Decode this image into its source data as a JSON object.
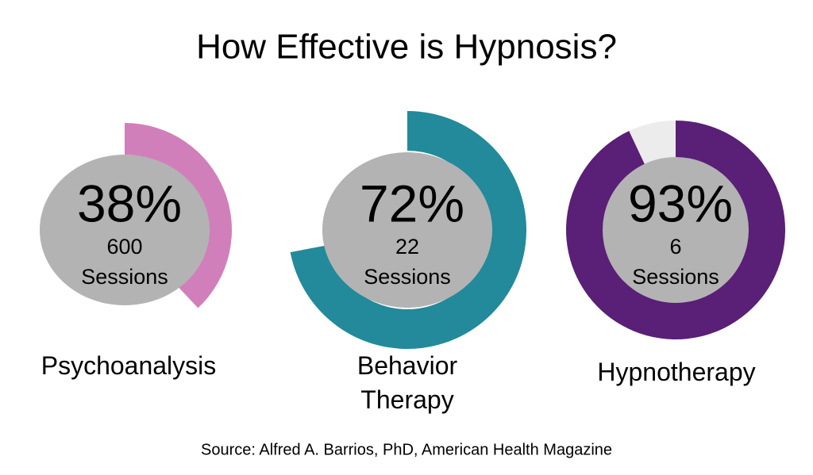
{
  "chart_data": {
    "type": "radial",
    "title": "How Effective is Hypnosis?",
    "categories": [
      "Psychoanalysis",
      "Behavior Therapy",
      "Hypnotherapy"
    ],
    "values": [
      38,
      72,
      93
    ],
    "value_labels": [
      "38%",
      "72%",
      "93%"
    ],
    "sessions": [
      600,
      22,
      6
    ],
    "sessions_label": "Sessions",
    "colors": [
      "#d17fbb",
      "#228a9a",
      "#5a1f76"
    ],
    "track_color": "#ececec",
    "source": "Source: Alfred A. Barrios, PhD, American Health Magazine"
  }
}
